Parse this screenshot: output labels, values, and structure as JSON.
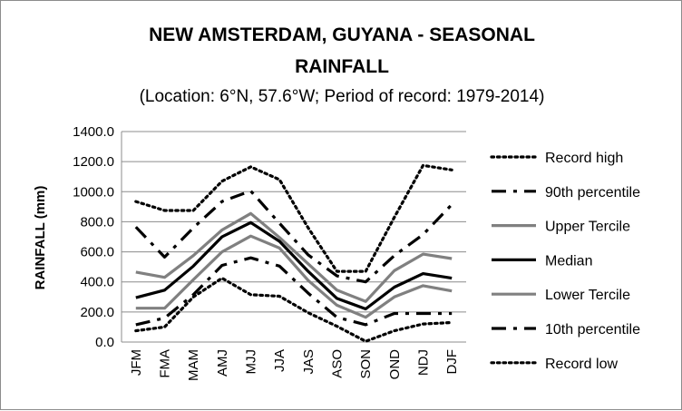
{
  "chart_data": {
    "type": "line",
    "title_line1": "NEW AMSTERDAM, GUYANA - SEASONAL",
    "title_line2": "RAINFALL",
    "subtitle": "(Location: 6°N, 57.6°W; Period of record: 1979-2014)",
    "xlabel": "",
    "ylabel": "RAINFALL (mm)",
    "ylim": [
      0,
      1400
    ],
    "yticks": [
      "0.0",
      "200.0",
      "400.0",
      "600.0",
      "800.0",
      "1000.0",
      "1200.0",
      "1400.0"
    ],
    "grid": "horizontal",
    "legend_position": "right",
    "categories": [
      "JFM",
      "FMA",
      "MAM",
      "AMJ",
      "MJJ",
      "JJA",
      "JAS",
      "ASO",
      "SON",
      "OND",
      "NDJ",
      "DJF"
    ],
    "series": [
      {
        "name": "Record high",
        "style": "dotted",
        "color": "#000000",
        "values": [
          935,
          875,
          875,
          1070,
          1165,
          1080,
          760,
          470,
          470,
          830,
          1175,
          1145
        ]
      },
      {
        "name": "90th percentile",
        "style": "dashdot",
        "color": "#000000",
        "values": [
          765,
          565,
          760,
          935,
          1005,
          790,
          580,
          440,
          400,
          575,
          715,
          915
        ]
      },
      {
        "name": "Upper Tercile",
        "style": "solid",
        "color": "#808080",
        "values": [
          465,
          430,
          575,
          745,
          855,
          695,
          520,
          345,
          270,
          475,
          585,
          555
        ]
      },
      {
        "name": "Median",
        "style": "solid",
        "color": "#000000",
        "values": [
          295,
          345,
          505,
          700,
          795,
          670,
          470,
          290,
          220,
          365,
          455,
          425
        ]
      },
      {
        "name": "Lower Tercile",
        "style": "solid",
        "color": "#808080",
        "values": [
          225,
          225,
          415,
          600,
          705,
          625,
          410,
          245,
          165,
          300,
          375,
          340
        ]
      },
      {
        "name": "10th percentile",
        "style": "dashdot",
        "color": "#000000",
        "values": [
          115,
          160,
          315,
          510,
          560,
          505,
          325,
          165,
          115,
          190,
          190,
          190
        ]
      },
      {
        "name": "Record low",
        "style": "dotted",
        "color": "#000000",
        "values": [
          75,
          100,
          300,
          425,
          315,
          305,
          195,
          105,
          5,
          75,
          120,
          130
        ]
      }
    ]
  }
}
